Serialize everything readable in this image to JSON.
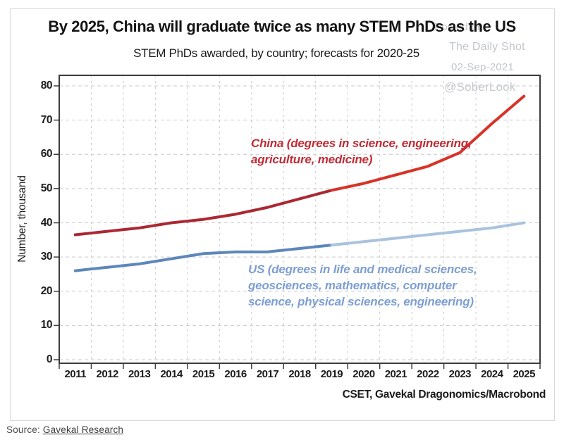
{
  "title": "By 2025, China will graduate twice as many STEM PhDs as the US",
  "subtitle": "STEM PhDs awarded, by country; forecasts for 2020-25",
  "watermark": {
    "posted_on": "Posted on",
    "site": "The Daily Shot",
    "date": "02-Sep-2021",
    "handle": "@SoberLook"
  },
  "chart_data": {
    "type": "line",
    "title": "By 2025, China will graduate twice as many STEM PhDs as the US",
    "subtitle": "STEM PhDs awarded, by country; forecasts for 2020-25",
    "xlabel": "",
    "ylabel": "Number, thousand",
    "ylim": [
      0,
      80
    ],
    "ytick_step": 10,
    "grid": "dashed",
    "legend_position": "inline-annotations",
    "x": [
      2011,
      2012,
      2013,
      2014,
      2015,
      2016,
      2017,
      2018,
      2019,
      2020,
      2021,
      2022,
      2023,
      2024,
      2025
    ],
    "forecast_split_index": 8,
    "series": [
      {
        "name": "China",
        "annotation": "China (degrees in science, engineering,\nagriculture, medicine)",
        "annotation_color": "#c22b35",
        "color_history": "#ab2832",
        "color_forecast": "#d93227",
        "values": [
          36.5,
          37.5,
          38.5,
          40,
          41,
          42.5,
          44.5,
          47,
          49.5,
          51.5,
          54,
          56.5,
          60.5,
          69,
          77
        ]
      },
      {
        "name": "US",
        "annotation": "US (degrees in life and medical sciences,\ngeosciences, mathematics, computer\nscience, physical sciences, engineering)",
        "annotation_color": "#7d9ed3",
        "color_history": "#5d87ba",
        "color_forecast": "#a9c3de",
        "values": [
          26,
          27,
          28,
          29.5,
          31,
          31.5,
          31.5,
          32.5,
          33.5,
          34.5,
          35.5,
          36.5,
          37.5,
          38.5,
          40
        ]
      }
    ],
    "attribution": "CSET, Gavekal Dragonomics/Macrobond"
  },
  "source": {
    "prefix": "Source: ",
    "link_text": "Gavekal Research"
  }
}
